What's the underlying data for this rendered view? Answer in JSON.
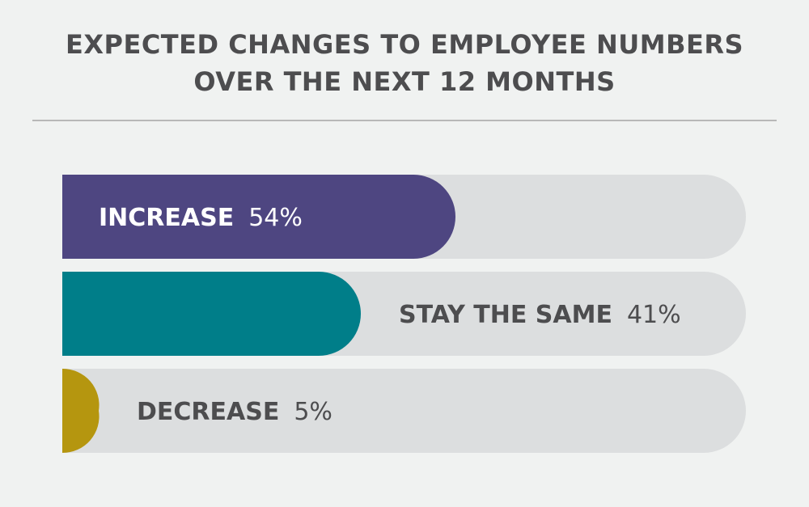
{
  "chart_data": {
    "type": "bar",
    "orientation": "horizontal",
    "title": "EXPECTED CHANGES TO EMPLOYEE NUMBERS OVER THE NEXT 12 MONTHS",
    "title_lines": [
      "EXPECTED CHANGES TO EMPLOYEE NUMBERS",
      "OVER THE NEXT 12 MONTHS"
    ],
    "categories": [
      "INCREASE",
      "STAY THE SAME",
      "DECREASE"
    ],
    "values": [
      54,
      41,
      5
    ],
    "value_labels": [
      "54%",
      "41%",
      "5%"
    ],
    "xlim": [
      0,
      100
    ],
    "unit": "%",
    "colors": [
      "#4e4681",
      "#007e89",
      "#b5960f"
    ],
    "track_color": "#dcdedf",
    "label_colors": [
      "#ffffff",
      "#4d4d4f",
      "#4d4d4f"
    ],
    "legend": "none",
    "grid": false
  }
}
